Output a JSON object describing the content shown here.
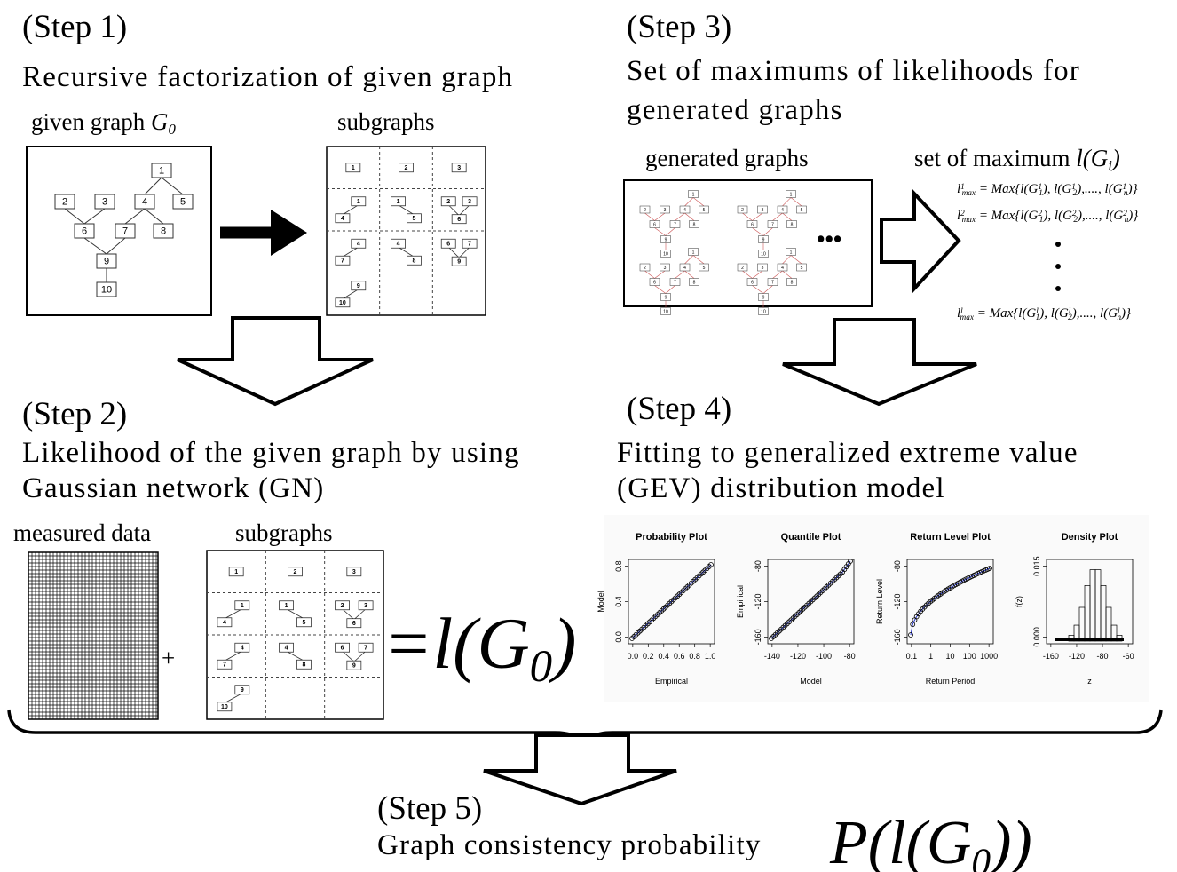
{
  "step1": {
    "heading": "(Step 1)",
    "title": "Recursive factorization of given graph",
    "given": {
      "label": "given graph ",
      "symbol": "G",
      "subscript": "0"
    },
    "nodes": [
      "1",
      "2",
      "3",
      "4",
      "5",
      "6",
      "7",
      "8",
      "9",
      "10"
    ],
    "subgraphs": {
      "label": "subgraphs",
      "cells": [
        [
          "1"
        ],
        [
          "2"
        ],
        [
          "3"
        ],
        [
          "1",
          "4"
        ],
        [
          "1",
          "5"
        ],
        [
          "2",
          "3",
          "6"
        ],
        [
          "4",
          "7"
        ],
        [
          "4",
          "8"
        ],
        [
          "6",
          "7",
          "9"
        ],
        [
          "9",
          "10"
        ]
      ]
    }
  },
  "step2": {
    "heading": "(Step 2)",
    "title": [
      "Likelihood of the given graph by using",
      "Gaussian network (GN)"
    ],
    "data_label": "measured data",
    "plus": "+",
    "subgraphs": {
      "label": "subgraphs",
      "cells": [
        [
          "1"
        ],
        [
          "2"
        ],
        [
          "3"
        ],
        [
          "1",
          "4"
        ],
        [
          "1",
          "5"
        ],
        [
          "2",
          "3",
          "6"
        ],
        [
          "4",
          "7"
        ],
        [
          "4",
          "8"
        ],
        [
          "6",
          "7",
          "9"
        ],
        [
          "9",
          "10"
        ]
      ]
    },
    "result": {
      "prefix": "=l(",
      "symbol": "G",
      "subscript": "0",
      "suffix": ")"
    }
  },
  "step3": {
    "heading": "(Step 3)",
    "title": [
      "Set of maximums of likelihoods for",
      "generated graphs"
    ],
    "generated_label": "generated graphs",
    "ellipsis": "•••",
    "set_label": {
      "text": "set of maximum ",
      "symbol": "l(G",
      "subscript": "i",
      "suffix": ")"
    },
    "formulas": [
      [
        {
          "t": "l",
          "sup": "1",
          "sub": "max"
        },
        {
          "t": " = Max{l(G",
          "sup": "1",
          "sub": "1"
        },
        {
          "t": "), l(G",
          "sup": "1",
          "sub": "2"
        },
        {
          "t": "),...., l(G",
          "sup": "1",
          "sub": "n"
        },
        {
          "t": ")}"
        }
      ],
      [
        {
          "t": "l",
          "sup": "2",
          "sub": "max"
        },
        {
          "t": " = Max{l(G",
          "sup": "2",
          "sub": "1"
        },
        {
          "t": "), l(G",
          "sup": "2",
          "sub": "2"
        },
        {
          "t": "),...., l(G",
          "sup": "2",
          "sub": "n"
        },
        {
          "t": ")}"
        }
      ],
      [
        {
          "t": "l",
          "sup": "l",
          "sub": "max"
        },
        {
          "t": " = Max{l(G",
          "sup": "l",
          "sub": "1"
        },
        {
          "t": "), l(G",
          "sup": "l",
          "sub": "2"
        },
        {
          "t": "),...., l(G",
          "sup": "l",
          "sub": "n"
        },
        {
          "t": ")}"
        }
      ]
    ]
  },
  "step4": {
    "heading": "(Step 4)",
    "title": [
      "Fitting to generalized extreme value",
      "(GEV) distribution model"
    ],
    "plots": [
      {
        "title": "Probability Plot",
        "xlabel": "Empirical",
        "ylabel": "Model",
        "xticks": [
          "0.0",
          "0.2",
          "0.4",
          "0.6",
          "0.8",
          "1.0"
        ],
        "yticks": [
          "0.0",
          "0.4",
          "0.8"
        ]
      },
      {
        "title": "Quantile Plot",
        "xlabel": "Model",
        "ylabel": "Empirical",
        "xticks": [
          "-140",
          "-120",
          "-100",
          "-80"
        ],
        "yticks": [
          "-160",
          "-120",
          "-80"
        ]
      },
      {
        "title": "Return Level Plot",
        "xlabel": "Return Period",
        "ylabel": "Return Level",
        "xticks": [
          "0.1",
          "1",
          "10",
          "100",
          "1000"
        ],
        "yticks": [
          "-160",
          "-120",
          "-80"
        ]
      },
      {
        "title": "Density Plot",
        "xlabel": "z",
        "ylabel": "f(z)",
        "xticks": [
          "-160",
          "-120",
          "-80",
          "-60"
        ],
        "yticks": [
          "0.000",
          "0.015"
        ]
      }
    ]
  },
  "step5": {
    "heading": "(Step 5)",
    "title": "Graph consistency probability",
    "result": {
      "prefix": "P(l(",
      "symbol": "G",
      "subscript": "0",
      "suffix": "))"
    }
  }
}
